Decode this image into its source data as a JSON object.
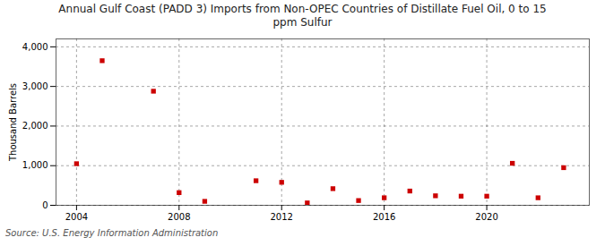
{
  "chart_data": {
    "type": "scatter",
    "title": "Annual Gulf Coast (PADD 3) Imports from Non-OPEC Countries of Distillate Fuel Oil, 0 to 15\nppm Sulfur",
    "ylabel": "Thousand Barrels",
    "source": "Source: U.S. Energy Information Administration",
    "x": [
      2004,
      2005,
      2007,
      2008,
      2009,
      2011,
      2012,
      2013,
      2014,
      2015,
      2016,
      2017,
      2018,
      2019,
      2020,
      2021,
      2022,
      2023
    ],
    "values": [
      1050,
      3650,
      2880,
      320,
      100,
      620,
      580,
      60,
      420,
      120,
      190,
      360,
      240,
      230,
      230,
      1060,
      190,
      950
    ],
    "color": "#cc0000",
    "marker": "square",
    "xlim": [
      2003.2,
      2024.0
    ],
    "ylim": [
      0,
      4200
    ],
    "xticks": [
      2004,
      2008,
      2012,
      2016,
      2020
    ],
    "yticks": [
      0,
      {
        "value": 1000,
        "label": "1,000"
      },
      {
        "value": 2000,
        "label": "2,000"
      },
      {
        "value": 3000,
        "label": "3,000"
      },
      {
        "value": 4000,
        "label": "4,000"
      }
    ],
    "grid": true
  }
}
